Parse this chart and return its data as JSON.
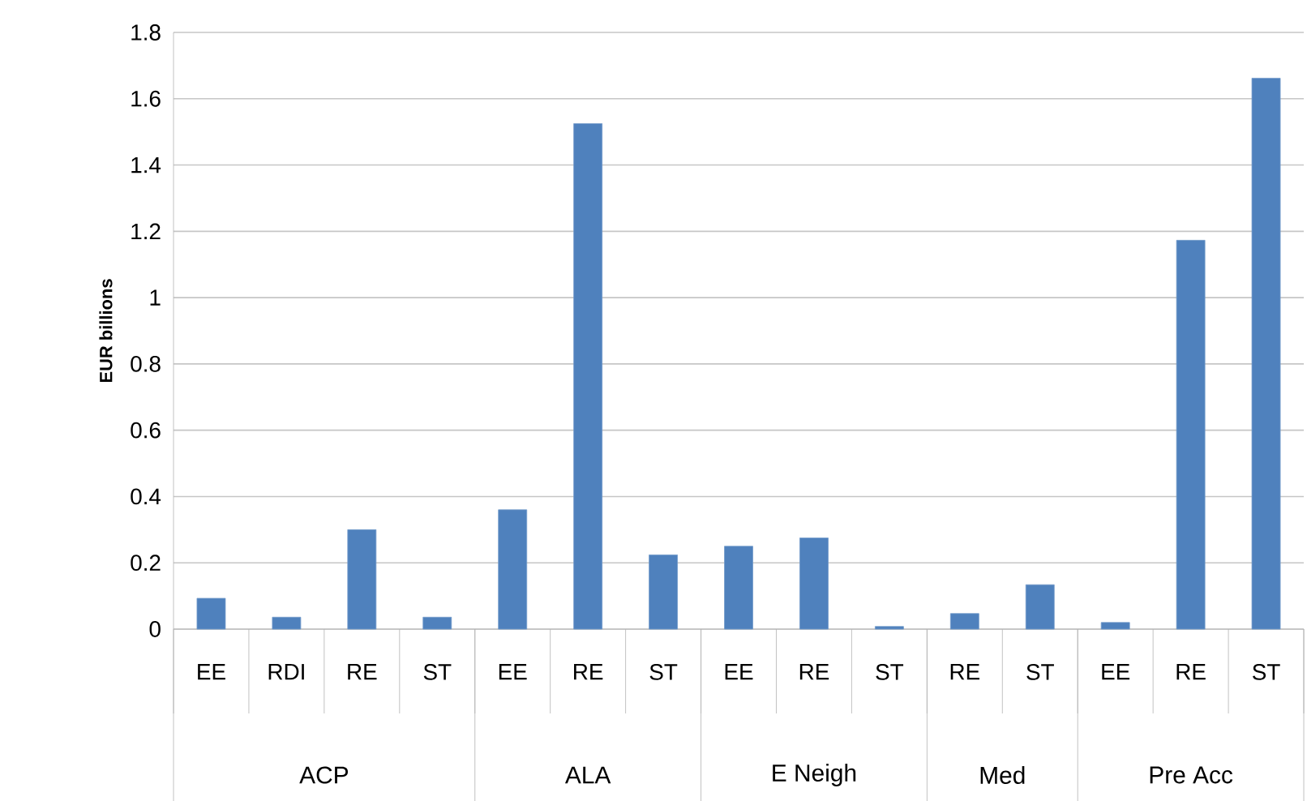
{
  "chart_data": {
    "type": "bar",
    "ylabel": "EUR billions",
    "categories": [
      "EE",
      "RDI",
      "RE",
      "ST",
      "EE",
      "RE",
      "ST",
      "EE",
      "RE",
      "ST",
      "RE",
      "ST",
      "EE",
      "RE",
      "ST"
    ],
    "values": [
      0.093,
      0.036,
      0.3,
      0.036,
      0.36,
      1.525,
      0.224,
      0.25,
      0.275,
      0.008,
      0.047,
      0.134,
      0.02,
      1.173,
      1.662
    ],
    "color": "#4f81bd",
    "annotations": [
      "ACP",
      "ALA",
      "E Neigh",
      "Med",
      "Pre Acc"
    ],
    "ylim": [
      0,
      1.8
    ],
    "yticks": [
      0,
      0.2,
      0.4,
      0.6,
      0.8,
      1,
      1.2,
      1.4,
      1.6,
      1.8
    ],
    "grid": "y"
  }
}
